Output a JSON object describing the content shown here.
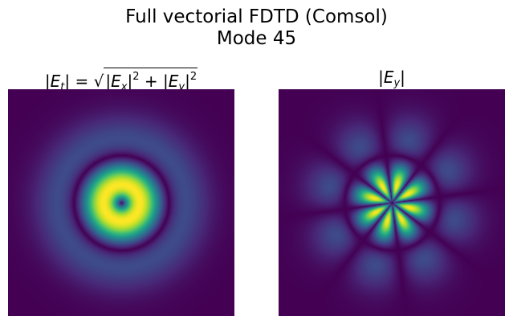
{
  "figure": {
    "title_line1": "Full vectorial FDTD (Comsol)",
    "title_line2": "Mode 45"
  },
  "chart_data": [
    {
      "type": "heatmap",
      "title": "|E_t| = sqrt(|E_x|^2 + |E_y|^2)",
      "title_parts": {
        "Et": "E",
        "Et_sub": "t",
        "Ex": "E",
        "Ex_sub": "x",
        "Ey": "E",
        "Ey_sub": "y",
        "exp": "2",
        "eq": "=",
        "plus": "+"
      },
      "colormap": "viridis",
      "pattern": "radially symmetric, dark center, bright inner ring, dark nodal ring, dimmer outer ring",
      "axes_visible": false
    },
    {
      "type": "heatmap",
      "title": "|E_y|",
      "title_parts": {
        "Ey": "E",
        "Ey_sub": "y"
      },
      "colormap": "viridis",
      "pattern": "8 angular lobes in each of 2 radial rings with dark nodal lines",
      "axes_visible": false
    }
  ]
}
